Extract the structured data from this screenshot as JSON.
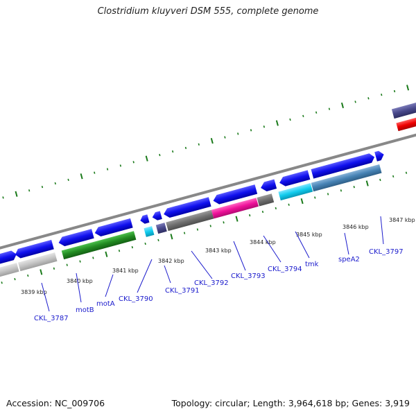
{
  "title": "Clostridium kluyveri DSM 555, complete genome",
  "footer": {
    "accession": "Accession: NC_009706",
    "topology": "Topology: circular; Length: 3,964,618 bp; Genes: 3,919"
  },
  "axis": {
    "kbp_ticks": [
      "3839 kbp",
      "3840 kbp",
      "3841 kbp",
      "3842 kbp",
      "3843 kbp",
      "3844 kbp",
      "3845 kbp",
      "3846 kbp",
      "3847 kbp"
    ]
  },
  "genes": [
    "CKL_3787",
    "motB",
    "motA",
    "CKL_3790",
    "CKL_3791",
    "CKL_3792",
    "CKL_3793",
    "CKL_3794",
    "tmk",
    "speA2",
    "CKL_3797"
  ],
  "colors": {
    "cds": "#1010ee",
    "backbone": "#888888",
    "tick": "#1a7a1a",
    "label": "#1a1acc",
    "green": "#228b22",
    "pink": "#ee1199",
    "cyan": "#11ccee",
    "steel": "#4682b4",
    "dark_purple": "#48488a",
    "gray": "#6e6e6e",
    "light_gray": "#c4c4c4",
    "red": "#ee0000"
  }
}
